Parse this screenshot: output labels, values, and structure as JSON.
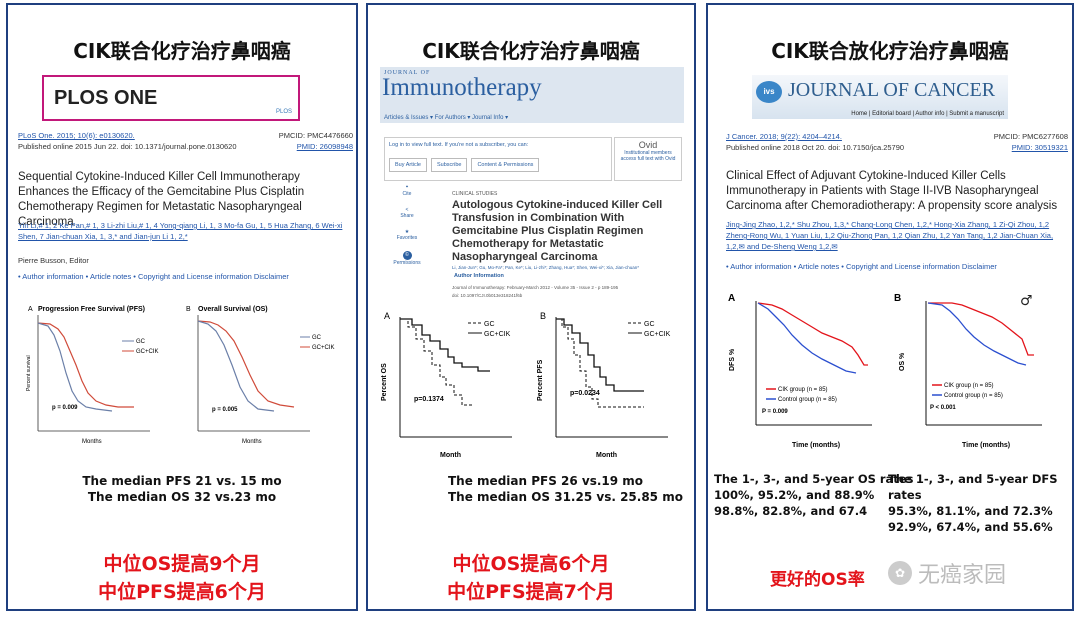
{
  "panels": [
    {
      "title": "CIK联合化疗治疗鼻咽癌",
      "journal": "PLOS ONE",
      "journal_badge": "PLOS",
      "cite1": "PLoS One. 2015; 10(6): e0130620.",
      "cite2": "Published online 2015 Jun 22. doi: 10.1371/journal.pone.0130620",
      "pmcid": "PMCID: PMC4476660",
      "pmid": "PMID: 26098948",
      "article_title": "Sequential Cytokine-Induced Killer Cell Immunotherapy Enhances the Efficacy of the Gemcitabine Plus Cisplatin Chemotherapy Regimen for Metastatic Nasopharyngeal Carcinoma",
      "authors": "Yin Li,# 1, 2 Ke Pan,# 1, 3 Li-zhi Liu,# 1, 4 Yong-qiang Li, 1, 3 Mo-fa Gu, 1, 5 Hua Zhang, 6 Wei-xi Shen, 7 Jian-chuan Xia, 1, 3,* and Jian-jun Li 1, 2,*",
      "editor": "Pierre Busson, Editor",
      "info_links": "• Author information  • Article notes  • Copyright and License information Disclaimer",
      "chartA_title": "Progression Free Survival (PFS)",
      "chartB_title": "Overall Survival (OS)",
      "legend": [
        "GC",
        "GC+CIK"
      ],
      "ylabel": "Percent survival",
      "xlabel": "Months",
      "pA": "p = 0.009",
      "pB": "p = 0.005",
      "summary": [
        "The median PFS  21 vs. 15 mo",
        "The median OS  32 vs.23 mo"
      ],
      "red": [
        "中位OS提高9个月",
        "中位PFS提高6个月"
      ]
    },
    {
      "title": "CIK联合化疗治疗鼻咽癌",
      "journal_small": "JOURNAL OF",
      "journal": "Immunotherapy",
      "nav": "Articles & Issues ▾   For Authors ▾   Journal Info ▾",
      "login": "Log in to view full text. If you're not a subscriber, you can:",
      "buttons": [
        "Buy Article",
        "Subscribe",
        "Content & Permissions"
      ],
      "ovid": "Ovid",
      "ovid_text": "Institutional members access full text with Ovid",
      "side": [
        "Cite",
        "Share",
        "Favorites",
        "Permissions"
      ],
      "section": "CLINICAL STUDIES",
      "article_title": "Autologous Cytokine-induced Killer Cell Transfusion in Combination With Gemcitabine Plus Cisplatin Regimen Chemotherapy for Metastatic Nasopharyngeal Carcinoma",
      "authors": "Li, Jian-Jun*; Gu, Mo-Fa*; Pan, Ke*; Liu, Li-zhi*; Zhang, Hua*; Shen, Wei-xi*; Xia, Jian-chuan*",
      "author_info": "Author Information",
      "journal_line": "Journal of Immunotherapy: February-March 2012 - Volume 35 - Issue 2 - p 189-195",
      "doi": "doi: 10.1097/CJI.0b013e318241f6b",
      "chartA_letter": "A",
      "chartB_letter": "B",
      "ylabelA": "Percent OS",
      "ylabelB": "Percent PFS",
      "xlabel": "Month",
      "legend": [
        "GC",
        "GC+CIK"
      ],
      "pA": "p=0.1374",
      "pB": "p=0.0234",
      "summary": [
        "The median PFS 26 vs.19 mo",
        "The median OS  31.25 vs. 25.85 mo"
      ],
      "red": [
        "中位OS提高6个月",
        "中位PFS提高7个月"
      ]
    },
    {
      "title": "CIK联合放化疗治疗鼻咽癌",
      "journal": "JOURNAL OF CANCER",
      "journal_nav": "Home | Editorial board | Author info | Submit a manuscript",
      "cite1": "J Cancer. 2018; 9(22): 4204–4214.",
      "cite2": "Published online 2018 Oct 20. doi: 10.7150/jca.25790",
      "pmcid": "PMCID: PMC6277608",
      "pmid": "PMID: 30519321",
      "article_title": "Clinical Effect of Adjuvant Cytokine-Induced Killer Cells Immunotherapy in Patients with Stage II-IVB Nasopharyngeal Carcinoma after Chemoradiotherapy: A propensity score analysis",
      "authors": "Jing-Jing Zhao, 1,2,* Shu Zhou, 1,3,* Chang-Long Chen, 1,2,* Hong-Xia Zhang, 1 Zi-Qi Zhou, 1,2 Zheng-Rong Wu, 1 Yuan Liu, 1,2 Qiu-Zhong Pan, 1,2 Qian Zhu, 1,2 Yan Tang, 1,2 Jian-Chuan Xia, 1,2,✉ and De-Sheng Weng 1,2,✉",
      "info_links": "• Author information  • Article notes  • Copyright and License information Disclaimer",
      "chartA_letter": "A",
      "chartB_letter": "B",
      "ylabelA": "DFS %",
      "ylabelB": "OS %",
      "xlabel": "Time (months)",
      "legend": [
        "CIK group (n = 85)",
        "Control group (n = 85)"
      ],
      "pA": "P = 0.009",
      "pB": "P < 0.001",
      "summary_left": [
        "The 1-, 3-, and 5-year OS rates",
        "100%, 95.2%, and 88.9%",
        "98.8%, 82.8%, and 67.4"
      ],
      "summary_right": [
        "The 1-, 3-, and 5-year DFS rates",
        "95.3%, 81.1%, and 72.3%",
        "92.9%, 67.4%, and 55.6%"
      ],
      "red": "更好的OS率",
      "watermark": "无癌家园"
    }
  ],
  "colors": {
    "border": "#1f3f7f",
    "red": "#e3141b",
    "plos": "#c2187a",
    "immuno": "#2b5fa0"
  }
}
